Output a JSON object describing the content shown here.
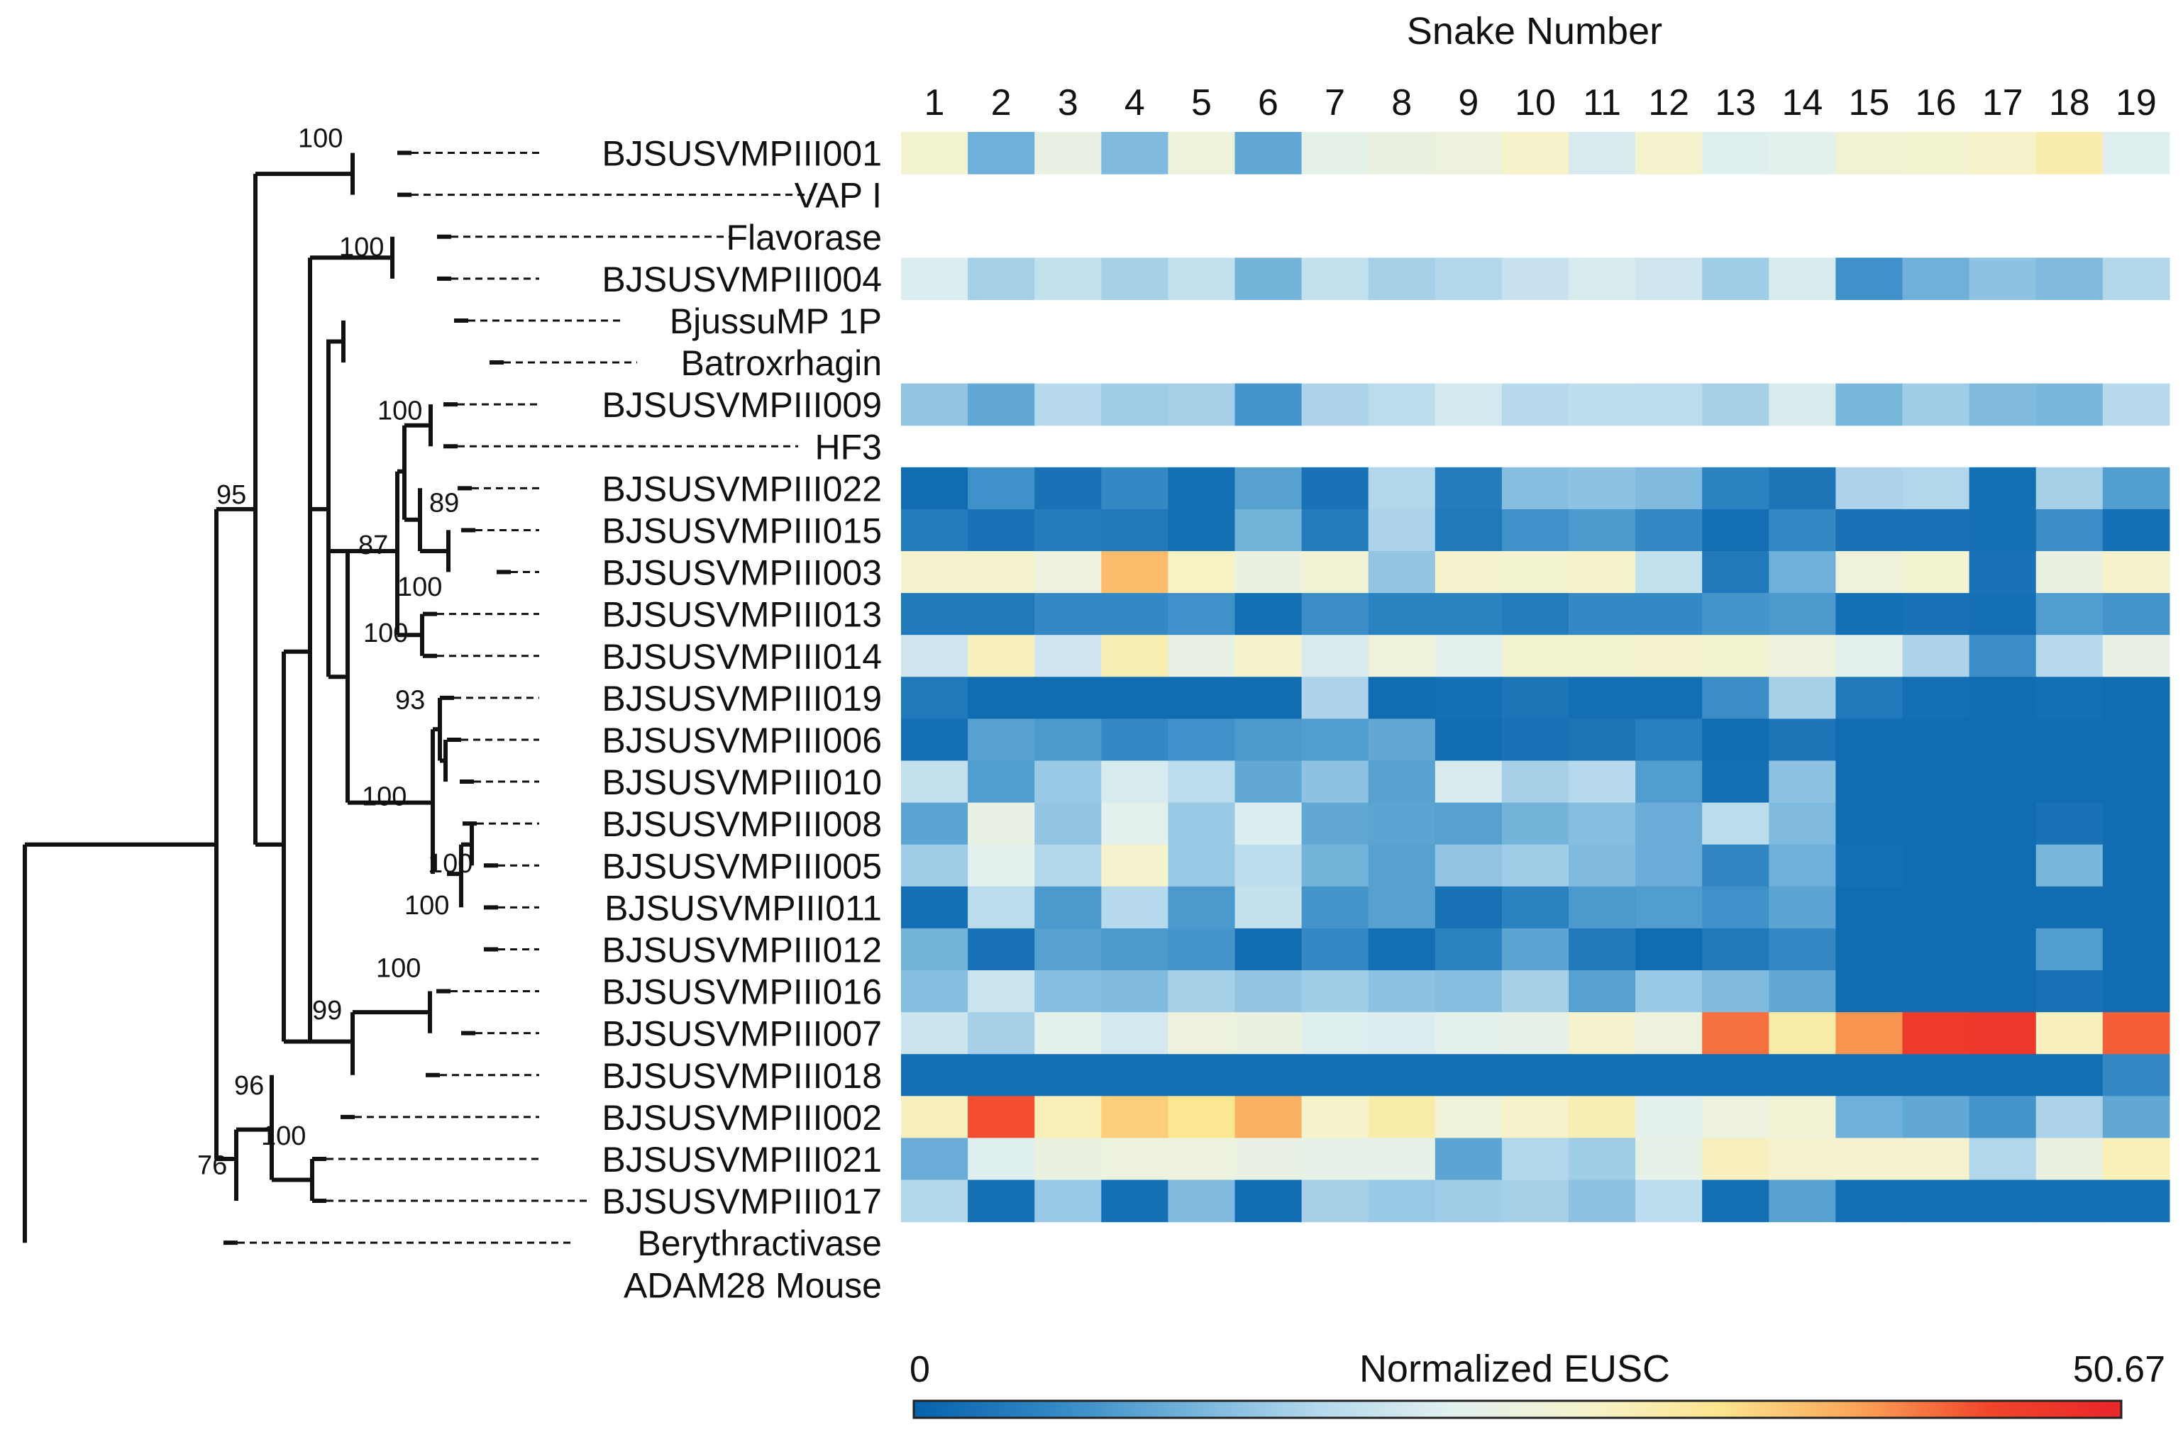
{
  "chart_data": {
    "type": "heatmap",
    "title": "Snake Number",
    "xlabel": "Snake Number",
    "colorbar": {
      "label": "Normalized EUSC",
      "min_label": "0",
      "max_label": "50.67",
      "min": 0,
      "max": 50.67
    },
    "colors": {
      "scale": [
        "#0762ac",
        "#2f86c3",
        "#6fb1da",
        "#b4d8ec",
        "#e1f0f0",
        "#f6f3cc",
        "#fce58e",
        "#fba75a",
        "#f1462b",
        "#e8262a"
      ],
      "empty": "#ffffff",
      "tree": "#111111"
    },
    "columns": [
      "1",
      "2",
      "3",
      "4",
      "5",
      "6",
      "7",
      "8",
      "9",
      "10",
      "11",
      "12",
      "13",
      "14",
      "15",
      "16",
      "17",
      "18",
      "19"
    ],
    "rows": [
      {
        "label": "BJSUSVMPIII001",
        "values": [
          0.54,
          0.22,
          0.48,
          0.25,
          0.51,
          0.2,
          0.47,
          0.49,
          0.5,
          0.56,
          0.42,
          0.55,
          0.44,
          0.46,
          0.53,
          0.54,
          0.56,
          0.61,
          0.44
        ]
      },
      {
        "label": "VAP I",
        "values": null
      },
      {
        "label": "Flavorase",
        "values": null
      },
      {
        "label": "BJSUSVMPIII004",
        "values": [
          0.43,
          0.31,
          0.37,
          0.31,
          0.37,
          0.23,
          0.37,
          0.31,
          0.33,
          0.38,
          0.42,
          0.4,
          0.3,
          0.42,
          0.14,
          0.22,
          0.27,
          0.25,
          0.33
        ]
      },
      {
        "label": "BjussuMP 1P",
        "values": null
      },
      {
        "label": "Batroxrhagin",
        "values": null
      },
      {
        "label": "BJSUSVMPIII009",
        "values": [
          0.28,
          0.2,
          0.34,
          0.3,
          0.31,
          0.15,
          0.32,
          0.35,
          0.41,
          0.34,
          0.36,
          0.35,
          0.31,
          0.42,
          0.24,
          0.3,
          0.25,
          0.24,
          0.34
        ]
      },
      {
        "label": "HF3",
        "values": null
      },
      {
        "label": "BJSUSVMPIII022",
        "values": [
          0.03,
          0.14,
          0.05,
          0.12,
          0.04,
          0.18,
          0.05,
          0.33,
          0.08,
          0.26,
          0.27,
          0.25,
          0.1,
          0.06,
          0.32,
          0.33,
          0.04,
          0.31,
          0.17
        ]
      },
      {
        "label": "BJSUSVMPIII015",
        "values": [
          0.08,
          0.05,
          0.08,
          0.07,
          0.04,
          0.23,
          0.08,
          0.32,
          0.07,
          0.14,
          0.16,
          0.12,
          0.04,
          0.12,
          0.05,
          0.05,
          0.04,
          0.13,
          0.04
        ]
      },
      {
        "label": "BJSUSVMPIII003",
        "values": [
          0.55,
          0.55,
          0.5,
          0.74,
          0.57,
          0.49,
          0.53,
          0.28,
          0.55,
          0.54,
          0.56,
          0.37,
          0.07,
          0.22,
          0.52,
          0.54,
          0.05,
          0.49,
          0.56
        ]
      },
      {
        "label": "BJSUSVMPIII013",
        "values": [
          0.07,
          0.07,
          0.12,
          0.12,
          0.14,
          0.04,
          0.13,
          0.1,
          0.1,
          0.08,
          0.12,
          0.12,
          0.15,
          0.16,
          0.04,
          0.05,
          0.04,
          0.17,
          0.15
        ]
      },
      {
        "label": "BJSUSVMPIII014",
        "values": [
          0.4,
          0.58,
          0.4,
          0.6,
          0.48,
          0.56,
          0.42,
          0.52,
          0.46,
          0.54,
          0.54,
          0.55,
          0.54,
          0.5,
          0.46,
          0.32,
          0.13,
          0.34,
          0.48
        ]
      },
      {
        "label": "BJSUSVMPIII019",
        "values": [
          0.07,
          0.03,
          0.03,
          0.03,
          0.03,
          0.03,
          0.32,
          0.03,
          0.04,
          0.06,
          0.04,
          0.04,
          0.13,
          0.31,
          0.07,
          0.04,
          0.03,
          0.04,
          0.03
        ]
      },
      {
        "label": "BJSUSVMPIII006",
        "values": [
          0.04,
          0.18,
          0.16,
          0.12,
          0.14,
          0.16,
          0.17,
          0.2,
          0.03,
          0.05,
          0.06,
          0.09,
          0.03,
          0.06,
          0.03,
          0.03,
          0.03,
          0.03,
          0.03
        ]
      },
      {
        "label": "BJSUSVMPIII010",
        "values": [
          0.37,
          0.17,
          0.29,
          0.42,
          0.35,
          0.2,
          0.27,
          0.18,
          0.42,
          0.31,
          0.34,
          0.17,
          0.04,
          0.27,
          0.03,
          0.03,
          0.03,
          0.03,
          0.03
        ]
      },
      {
        "label": "BJSUSVMPIII008",
        "values": [
          0.19,
          0.48,
          0.28,
          0.45,
          0.29,
          0.43,
          0.2,
          0.19,
          0.18,
          0.23,
          0.26,
          0.21,
          0.35,
          0.25,
          0.03,
          0.03,
          0.03,
          0.05,
          0.03
        ]
      },
      {
        "label": "BJSUSVMPIII005",
        "values": [
          0.3,
          0.45,
          0.33,
          0.55,
          0.29,
          0.36,
          0.23,
          0.18,
          0.28,
          0.3,
          0.25,
          0.21,
          0.11,
          0.22,
          0.04,
          0.03,
          0.03,
          0.24,
          0.03
        ]
      },
      {
        "label": "BJSUSVMPIII011",
        "values": [
          0.04,
          0.35,
          0.16,
          0.34,
          0.16,
          0.37,
          0.15,
          0.18,
          0.05,
          0.1,
          0.16,
          0.17,
          0.14,
          0.19,
          0.03,
          0.03,
          0.03,
          0.03,
          0.03
        ]
      },
      {
        "label": "BJSUSVMPIII012",
        "values": [
          0.23,
          0.05,
          0.18,
          0.16,
          0.15,
          0.03,
          0.12,
          0.04,
          0.1,
          0.19,
          0.07,
          0.03,
          0.07,
          0.12,
          0.03,
          0.03,
          0.03,
          0.17,
          0.03
        ]
      },
      {
        "label": "BJSUSVMPIII016",
        "values": [
          0.26,
          0.39,
          0.26,
          0.25,
          0.31,
          0.28,
          0.3,
          0.27,
          0.26,
          0.31,
          0.18,
          0.29,
          0.25,
          0.2,
          0.03,
          0.03,
          0.03,
          0.05,
          0.03
        ]
      },
      {
        "label": "BJSUSVMPIII007",
        "values": [
          0.39,
          0.31,
          0.46,
          0.41,
          0.5,
          0.49,
          0.44,
          0.43,
          0.46,
          0.47,
          0.55,
          0.5,
          0.84,
          0.62,
          0.8,
          0.93,
          0.94,
          0.58,
          0.86
        ]
      },
      {
        "label": "BJSUSVMPIII018",
        "values": [
          0.04,
          0.04,
          0.04,
          0.04,
          0.04,
          0.04,
          0.04,
          0.04,
          0.04,
          0.04,
          0.04,
          0.04,
          0.04,
          0.04,
          0.04,
          0.04,
          0.04,
          0.04,
          0.12
        ]
      },
      {
        "label": "BJSUSVMPIII002",
        "values": [
          0.58,
          0.88,
          0.59,
          0.71,
          0.66,
          0.76,
          0.56,
          0.62,
          0.52,
          0.56,
          0.6,
          0.46,
          0.5,
          0.53,
          0.22,
          0.2,
          0.15,
          0.32,
          0.2
        ]
      },
      {
        "label": "BJSUSVMPIII021",
        "values": [
          0.21,
          0.44,
          0.49,
          0.5,
          0.5,
          0.48,
          0.47,
          0.47,
          0.19,
          0.33,
          0.3,
          0.47,
          0.58,
          0.55,
          0.55,
          0.55,
          0.33,
          0.49,
          0.59
        ]
      },
      {
        "label": "BJSUSVMPIII017",
        "values": [
          0.33,
          0.04,
          0.29,
          0.04,
          0.25,
          0.03,
          0.31,
          0.29,
          0.3,
          0.31,
          0.27,
          0.35,
          0.04,
          0.18,
          0.04,
          0.04,
          0.04,
          0.04,
          0.04
        ]
      },
      {
        "label": "Berythractivase",
        "values": null
      },
      {
        "label": "ADAM28 Mouse",
        "values": null
      }
    ],
    "bootstrap_labels": [
      "100",
      "100",
      "95",
      "100",
      "89",
      "87",
      "100",
      "100",
      "93",
      "100",
      "100",
      "100",
      "100",
      "99",
      "96",
      "100",
      "76"
    ]
  }
}
